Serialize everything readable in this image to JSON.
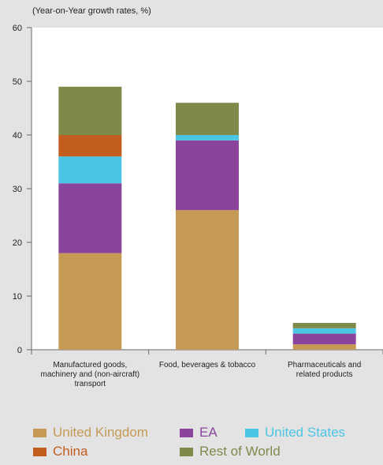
{
  "chart_data": {
    "type": "bar",
    "stacked": true,
    "ylabel": "(Year-on-Year growth rates, %)",
    "ylim": [
      0,
      60
    ],
    "yticks": [
      0,
      10,
      20,
      30,
      40,
      50,
      60
    ],
    "categories": [
      [
        "Manufactured goods,",
        "machinery and (non-aircraft)",
        "transport"
      ],
      [
        "Food, beverages & tobacco"
      ],
      [
        "Pharmaceuticals and",
        "related products"
      ]
    ],
    "series": [
      {
        "name": "United Kingdom",
        "color": "#c49a54",
        "values": [
          18,
          26,
          1
        ]
      },
      {
        "name": "EA",
        "color": "#8b449c",
        "values": [
          13,
          13,
          2
        ]
      },
      {
        "name": "United States",
        "color": "#4ac6e4",
        "values": [
          5,
          1,
          1
        ]
      },
      {
        "name": "China",
        "color": "#c35c1f",
        "values": [
          4,
          0,
          0
        ]
      },
      {
        "name": "Rest of World",
        "color": "#7e8a4a",
        "values": [
          9,
          6,
          1
        ]
      }
    ],
    "legend_position": "bottom",
    "grid": false
  }
}
